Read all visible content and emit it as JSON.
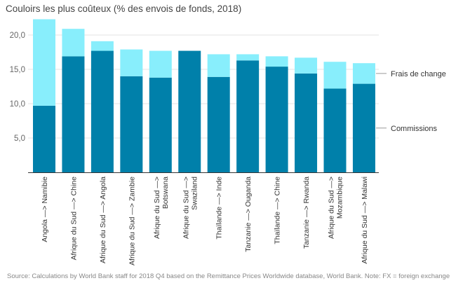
{
  "chart_data": {
    "type": "bar",
    "stacked": true,
    "title": "Couloirs les plus coûteux (% des envois de fonds, 2018)",
    "xlabel": "",
    "ylabel": "",
    "ylim": [
      0,
      22.5
    ],
    "yticks": [
      5,
      10,
      15,
      20
    ],
    "ytick_labels": [
      "5,0",
      "10,0",
      "15,0",
      "20,0"
    ],
    "grid": true,
    "legend_placement": "right (inline labels)",
    "categories": [
      "Angola --> Namibie",
      "Afrique du Sud --> Chine",
      "Afrique du Sud --> Angola",
      "Afrique du Sud --> Zambie",
      "Afrique du Sud -->\nBotswana",
      "Afrique du Sud -->\nSwaziland",
      "Thaïlande --> Inde",
      "Tanzanie --> Ouganda",
      "Thaïlande --> Chine",
      "Tanzanie --> Rwanda",
      "Afrique du Sud -->\nMozambique",
      "Afrique du Sud --> Malawi"
    ],
    "series": [
      {
        "name": "Commissions",
        "color": "#0080aa",
        "values": [
          9.7,
          16.9,
          17.7,
          14.0,
          13.8,
          17.7,
          13.9,
          16.3,
          15.4,
          14.4,
          12.2,
          12.9
        ]
      },
      {
        "name": "Frais de change",
        "color": "#88eefc",
        "values": [
          12.6,
          4.0,
          1.4,
          3.9,
          3.9,
          0.0,
          3.3,
          0.9,
          1.5,
          2.3,
          3.9,
          3.0
        ]
      }
    ],
    "source": "Source: Calculations by World Bank staff for 2018 Q4 based on the Remittance Prices Worldwide database, World Bank. Note: FX = foreign exchange"
  }
}
